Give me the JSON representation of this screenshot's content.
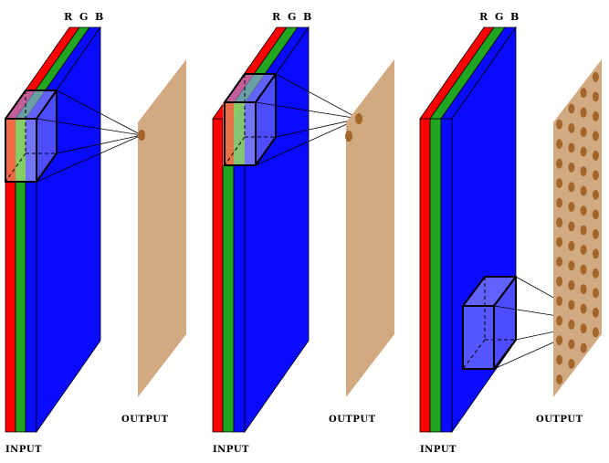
{
  "panels": [
    {
      "input_label": "INPUT",
      "output_label": "OUTPUT",
      "channels": [
        "R",
        "G",
        "B"
      ]
    },
    {
      "input_label": "INPUT",
      "output_label": "OUTPUT",
      "channels": [
        "R",
        "G",
        "B"
      ]
    },
    {
      "input_label": "INPUT",
      "output_label": "OUTPUT",
      "channels": [
        "R",
        "G",
        "B"
      ]
    }
  ],
  "colors": {
    "red": "#ff0000",
    "green": "#1fa51f",
    "blue": "#0a0aff",
    "output_plane": "#d2aa82",
    "output_dot": "#a4652a",
    "kernel_fill": "#6464ff",
    "outline": "#000000"
  }
}
